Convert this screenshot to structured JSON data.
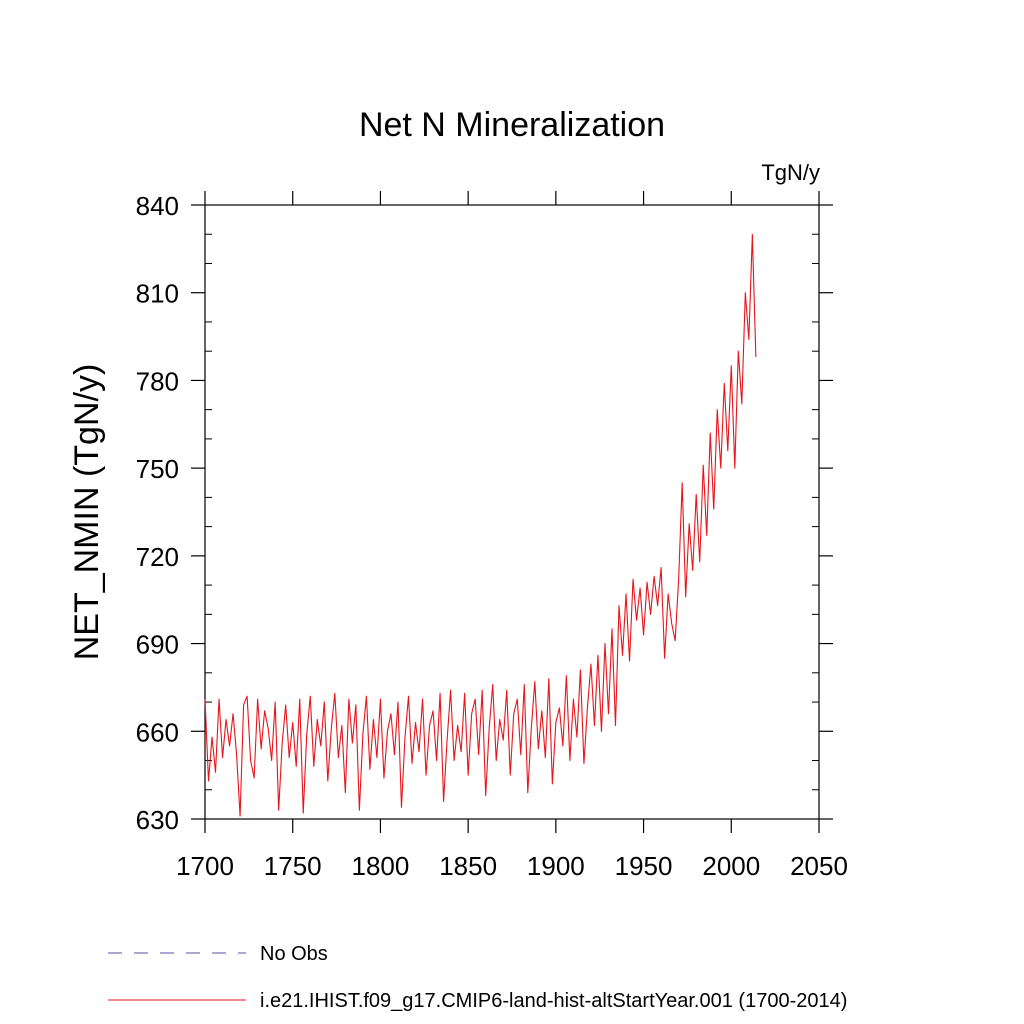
{
  "chart_data": {
    "type": "line",
    "title": "Net N Mineralization",
    "units_label": "TgN/y",
    "ylabel": "NET_NMIN  (TgN/y)",
    "xlabel": "",
    "xlim": [
      1700,
      2050
    ],
    "ylim": [
      630,
      840
    ],
    "x_ticks": [
      1700,
      1750,
      1800,
      1850,
      1900,
      1950,
      2000,
      2050
    ],
    "y_ticks": [
      630,
      660,
      690,
      720,
      750,
      780,
      810,
      840
    ],
    "x_tick_labels": [
      "1700",
      "1750",
      "1800",
      "1850",
      "1900",
      "1950",
      "2000",
      "2050"
    ],
    "y_tick_labels": [
      "630",
      "660",
      "690",
      "720",
      "750",
      "780",
      "810",
      "840"
    ],
    "grid": false,
    "legend_position": "bottom",
    "colors": {
      "model": "#e8141b",
      "obs": "#7f6fb0",
      "axis": "#000000"
    },
    "series": [
      {
        "name": "No Obs",
        "style": "dashed",
        "x": [],
        "values": []
      },
      {
        "name": "i.e21.IHIST.f09_g17.CMIP6-land-hist-altStartYear.001 (1700-2014)",
        "style": "solid",
        "x": [
          1700,
          1702,
          1704,
          1706,
          1708,
          1710,
          1712,
          1714,
          1716,
          1718,
          1720,
          1722,
          1724,
          1726,
          1728,
          1730,
          1732,
          1734,
          1736,
          1738,
          1740,
          1742,
          1744,
          1746,
          1748,
          1750,
          1752,
          1754,
          1756,
          1758,
          1760,
          1762,
          1764,
          1766,
          1768,
          1770,
          1772,
          1774,
          1776,
          1778,
          1780,
          1782,
          1784,
          1786,
          1788,
          1790,
          1792,
          1794,
          1796,
          1798,
          1800,
          1802,
          1804,
          1806,
          1808,
          1810,
          1812,
          1814,
          1816,
          1818,
          1820,
          1822,
          1824,
          1826,
          1828,
          1830,
          1832,
          1834,
          1836,
          1838,
          1840,
          1842,
          1844,
          1846,
          1848,
          1850,
          1852,
          1854,
          1856,
          1858,
          1860,
          1862,
          1864,
          1866,
          1868,
          1870,
          1872,
          1874,
          1876,
          1878,
          1880,
          1882,
          1884,
          1886,
          1888,
          1890,
          1892,
          1894,
          1896,
          1898,
          1900,
          1902,
          1904,
          1906,
          1908,
          1910,
          1912,
          1914,
          1916,
          1918,
          1920,
          1922,
          1924,
          1926,
          1928,
          1930,
          1932,
          1934,
          1936,
          1938,
          1940,
          1942,
          1944,
          1946,
          1948,
          1950,
          1952,
          1954,
          1956,
          1958,
          1960,
          1962,
          1964,
          1966,
          1968,
          1970,
          1972,
          1974,
          1976,
          1978,
          1980,
          1982,
          1984,
          1986,
          1988,
          1990,
          1992,
          1994,
          1996,
          1998,
          2000,
          2002,
          2004,
          2006,
          2008,
          2010,
          2012,
          2014
        ],
        "values": [
          671,
          643,
          658,
          646,
          671,
          651,
          664,
          655,
          666,
          652,
          631,
          669,
          672,
          650,
          644,
          671,
          654,
          667,
          661,
          650,
          670,
          633,
          656,
          669,
          651,
          663,
          648,
          671,
          632,
          659,
          672,
          648,
          664,
          655,
          670,
          643,
          661,
          673,
          651,
          662,
          639,
          671,
          656,
          669,
          633,
          659,
          672,
          647,
          664,
          651,
          671,
          644,
          660,
          666,
          652,
          670,
          634,
          658,
          672,
          649,
          663,
          653,
          671,
          645,
          662,
          667,
          650,
          673,
          636,
          657,
          674,
          650,
          662,
          653,
          673,
          645,
          666,
          671,
          652,
          674,
          638,
          661,
          676,
          650,
          664,
          657,
          674,
          645,
          666,
          671,
          652,
          676,
          639,
          661,
          677,
          654,
          667,
          651,
          678,
          642,
          663,
          668,
          655,
          679,
          650,
          671,
          658,
          681,
          649,
          668,
          683,
          662,
          686,
          660,
          690,
          666,
          695,
          662,
          703,
          686,
          707,
          684,
          712,
          698,
          709,
          693,
          711,
          700,
          713,
          703,
          716,
          685,
          707,
          697,
          691,
          712,
          745,
          706,
          731,
          715,
          741,
          718,
          751,
          727,
          762,
          736,
          770,
          750,
          779,
          756,
          785,
          750,
          790,
          772,
          810,
          794,
          830,
          788
        ]
      }
    ]
  }
}
